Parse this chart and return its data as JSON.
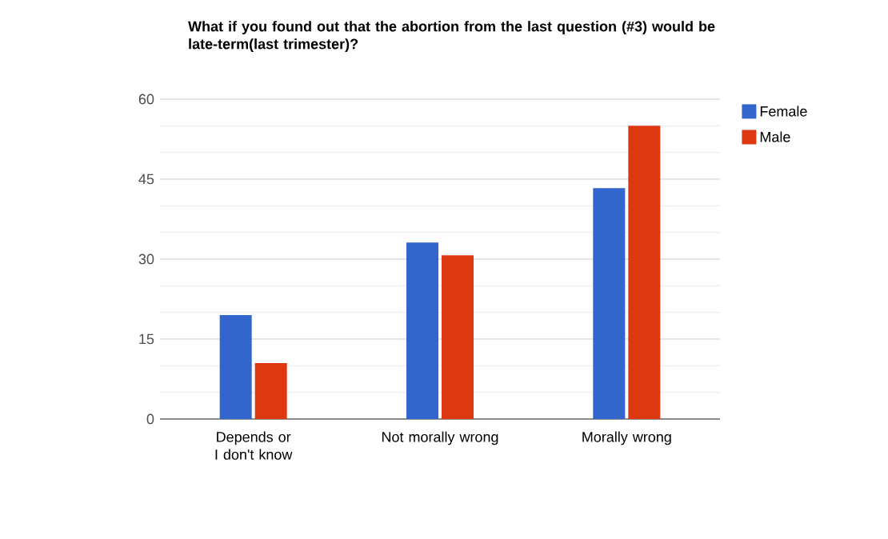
{
  "chart_data": {
    "type": "bar",
    "title": "What if you found out that the abortion from the last question (#3) would be late-term(last trimester)?",
    "categories": [
      "Depends or I don't know",
      "Not morally wrong",
      "Morally wrong"
    ],
    "series": [
      {
        "name": "Female",
        "color": "#3366cc",
        "values": [
          19.5,
          33.1,
          43.3
        ]
      },
      {
        "name": "Male",
        "color": "#dc3912",
        "values": [
          10.5,
          30.7,
          55.0
        ]
      }
    ],
    "ylim": [
      0,
      60
    ],
    "yticks": [
      0,
      15,
      30,
      45,
      60
    ],
    "grid": "y",
    "legend": "top right"
  }
}
